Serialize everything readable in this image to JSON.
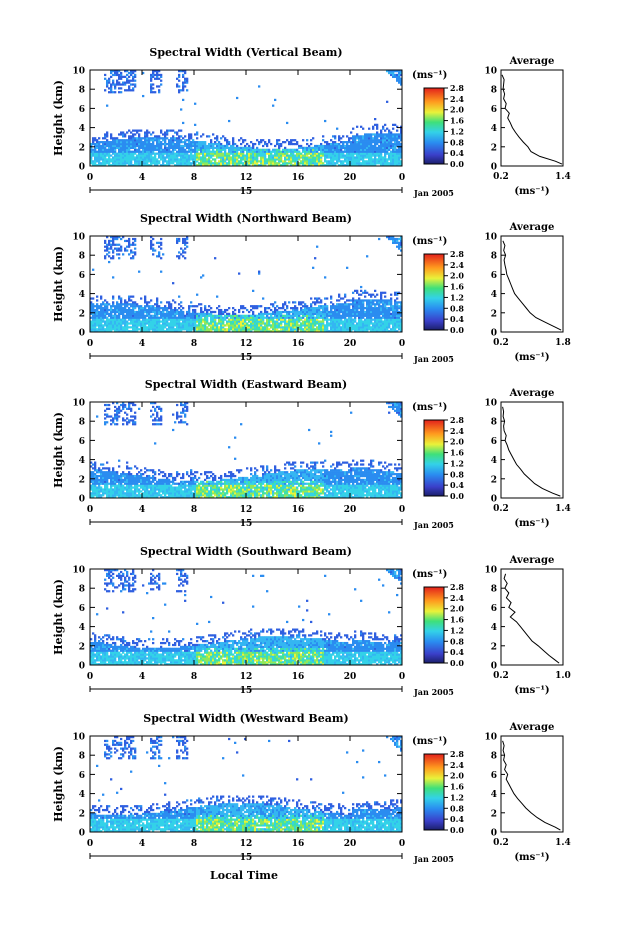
{
  "figure": {
    "xlabel": "Local Time",
    "date_label": "Jan 2005",
    "day_label": "15",
    "colorbar_unit": "(ms⁻¹)",
    "avg_unit": "(ms⁻¹)",
    "avg_title": "Average",
    "ylabel": "Height (km)"
  },
  "chart_data": [
    {
      "type": "heatmap",
      "title": "Spectral Width (Vertical Beam)",
      "xlabel": "Local Time",
      "ylabel": "Height (km)",
      "xticks": [
        "0",
        "4",
        "8",
        "12",
        "16",
        "20",
        "0"
      ],
      "yticks": [
        "0",
        "2",
        "4",
        "6",
        "8",
        "10"
      ],
      "xlim": [
        0,
        24
      ],
      "ylim": [
        0,
        10
      ],
      "colorbar_ticks": [
        "0.0",
        "0.4",
        "0.8",
        "1.2",
        "1.6",
        "2.0",
        "2.4",
        "2.8"
      ],
      "colorbar_range": [
        0,
        2.8
      ],
      "average_profile": {
        "title": "Average",
        "xticks": [
          "0.2",
          "1.4"
        ],
        "xlim": [
          0.2,
          1.4
        ],
        "yticks": [
          "0",
          "2",
          "4",
          "6",
          "8",
          "10"
        ],
        "height_km": [
          0.2,
          0.5,
          1.0,
          1.5,
          2.0,
          2.5,
          3.0,
          3.5,
          4.0,
          4.5,
          5.0,
          5.5,
          6.0,
          6.5,
          7.0,
          7.5,
          8.0,
          8.5,
          9.0,
          9.5
        ],
        "values": [
          1.38,
          1.25,
          0.95,
          0.78,
          0.72,
          0.63,
          0.55,
          0.48,
          0.42,
          0.38,
          0.33,
          0.36,
          0.28,
          0.3,
          0.25,
          0.27,
          0.24,
          0.25,
          0.26,
          0.22
        ]
      }
    },
    {
      "type": "heatmap",
      "title": "Spectral Width (Northward Beam)",
      "xlabel": "Local Time",
      "ylabel": "Height (km)",
      "xticks": [
        "0",
        "4",
        "8",
        "12",
        "16",
        "20",
        "0"
      ],
      "yticks": [
        "0",
        "2",
        "4",
        "6",
        "8",
        "10"
      ],
      "xlim": [
        0,
        24
      ],
      "ylim": [
        0,
        10
      ],
      "colorbar_ticks": [
        "0.0",
        "0.4",
        "0.8",
        "1.2",
        "1.6",
        "2.0",
        "2.4",
        "2.8"
      ],
      "colorbar_range": [
        0,
        2.8
      ],
      "average_profile": {
        "title": "Average",
        "xticks": [
          "0.2",
          "1.8"
        ],
        "xlim": [
          0.2,
          1.8
        ],
        "yticks": [
          "0",
          "2",
          "4",
          "6",
          "8",
          "10"
        ],
        "height_km": [
          0.2,
          0.5,
          1.0,
          1.5,
          2.0,
          2.5,
          3.0,
          3.5,
          4.0,
          4.5,
          5.0,
          5.5,
          6.0,
          6.5,
          7.0,
          7.5,
          8.0,
          8.5,
          9.0,
          9.5
        ],
        "values": [
          1.75,
          1.6,
          1.35,
          1.1,
          0.95,
          0.85,
          0.75,
          0.65,
          0.55,
          0.5,
          0.45,
          0.4,
          0.35,
          0.33,
          0.3,
          0.28,
          0.32,
          0.27,
          0.3,
          0.25
        ]
      }
    },
    {
      "type": "heatmap",
      "title": "Spectral Width (Eastward Beam)",
      "xlabel": "Local Time",
      "ylabel": "Height (km)",
      "xticks": [
        "0",
        "4",
        "8",
        "12",
        "16",
        "20",
        "0"
      ],
      "yticks": [
        "0",
        "2",
        "4",
        "6",
        "8",
        "10"
      ],
      "xlim": [
        0,
        24
      ],
      "ylim": [
        0,
        10
      ],
      "colorbar_ticks": [
        "0.0",
        "0.4",
        "0.8",
        "1.2",
        "1.6",
        "2.0",
        "2.4",
        "2.8"
      ],
      "colorbar_range": [
        0,
        2.8
      ],
      "average_profile": {
        "title": "Average",
        "xticks": [
          "0.2",
          "1.4"
        ],
        "xlim": [
          0.2,
          1.4
        ],
        "yticks": [
          "0",
          "2",
          "4",
          "6",
          "8",
          "10"
        ],
        "height_km": [
          0.2,
          0.5,
          1.0,
          1.5,
          2.0,
          2.5,
          3.0,
          3.5,
          4.0,
          4.5,
          5.0,
          5.5,
          6.0,
          6.5,
          7.0,
          7.5,
          8.0,
          8.5,
          9.0,
          9.5
        ],
        "values": [
          1.35,
          1.2,
          1.0,
          0.85,
          0.75,
          0.65,
          0.58,
          0.5,
          0.45,
          0.4,
          0.35,
          0.32,
          0.28,
          0.3,
          0.26,
          0.25,
          0.27,
          0.24,
          0.25,
          0.23
        ]
      }
    },
    {
      "type": "heatmap",
      "title": "Spectral Width (Southward Beam)",
      "xlabel": "Local Time",
      "ylabel": "Height (km)",
      "xticks": [
        "0",
        "4",
        "8",
        "12",
        "16",
        "20",
        "0"
      ],
      "yticks": [
        "0",
        "2",
        "4",
        "6",
        "8",
        "10"
      ],
      "xlim": [
        0,
        24
      ],
      "ylim": [
        0,
        10
      ],
      "colorbar_ticks": [
        "0.0",
        "0.4",
        "0.8",
        "1.2",
        "1.6",
        "2.0",
        "2.4",
        "2.8"
      ],
      "colorbar_range": [
        0,
        2.8
      ],
      "average_profile": {
        "title": "Average",
        "xticks": [
          "0.2",
          "1.0"
        ],
        "xlim": [
          0.2,
          1.0
        ],
        "yticks": [
          "0",
          "2",
          "4",
          "6",
          "8",
          "10"
        ],
        "height_km": [
          0.2,
          0.5,
          1.0,
          1.5,
          2.0,
          2.5,
          3.0,
          3.5,
          4.0,
          4.5,
          5.0,
          5.5,
          6.0,
          6.5,
          7.0,
          7.5,
          8.0,
          8.5,
          9.0,
          9.5
        ],
        "values": [
          0.95,
          0.9,
          0.82,
          0.75,
          0.68,
          0.6,
          0.55,
          0.5,
          0.45,
          0.4,
          0.32,
          0.38,
          0.3,
          0.33,
          0.27,
          0.3,
          0.25,
          0.28,
          0.24,
          0.26
        ]
      }
    },
    {
      "type": "heatmap",
      "title": "Spectral Width (Westward Beam)",
      "xlabel": "Local Time",
      "ylabel": "Height (km)",
      "xticks": [
        "0",
        "4",
        "8",
        "12",
        "16",
        "20",
        "0"
      ],
      "yticks": [
        "0",
        "2",
        "4",
        "6",
        "8",
        "10"
      ],
      "xlim": [
        0,
        24
      ],
      "ylim": [
        0,
        10
      ],
      "colorbar_ticks": [
        "0.0",
        "0.4",
        "0.8",
        "1.2",
        "1.6",
        "2.0",
        "2.4",
        "2.8"
      ],
      "colorbar_range": [
        0,
        2.8
      ],
      "average_profile": {
        "title": "Average",
        "xticks": [
          "0.2",
          "1.4"
        ],
        "xlim": [
          0.2,
          1.4
        ],
        "yticks": [
          "0",
          "2",
          "4",
          "6",
          "8",
          "10"
        ],
        "height_km": [
          0.2,
          0.5,
          1.0,
          1.5,
          2.0,
          2.5,
          3.0,
          3.5,
          4.0,
          4.5,
          5.0,
          5.5,
          6.0,
          6.5,
          7.0,
          7.5,
          8.0,
          8.5,
          9.0,
          9.5
        ],
        "values": [
          1.35,
          1.25,
          1.05,
          0.9,
          0.78,
          0.68,
          0.6,
          0.52,
          0.45,
          0.4,
          0.35,
          0.3,
          0.33,
          0.27,
          0.3,
          0.25,
          0.27,
          0.24,
          0.26,
          0.23
        ]
      }
    }
  ]
}
